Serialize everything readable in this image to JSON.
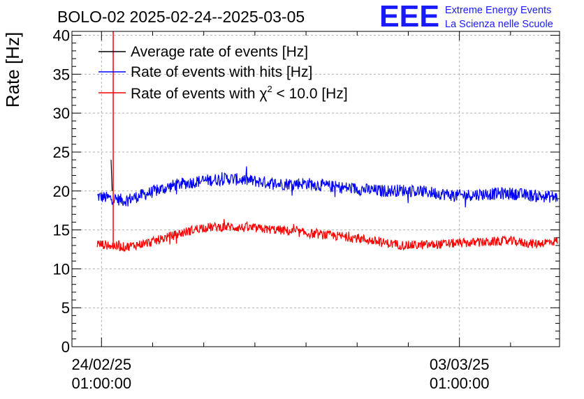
{
  "chart_data": {
    "type": "line",
    "title": "BOLO-02 2025-02-24--2025-03-05",
    "ylabel": "Rate [Hz]",
    "xlabel": "",
    "ylim": [
      0,
      40.5
    ],
    "yticks": [
      0,
      5,
      10,
      15,
      20,
      25,
      30,
      35,
      40
    ],
    "x_axis": {
      "unit": "days",
      "range_start": "2025-02-23 11:08",
      "range_end": "2025-03-05 00:00",
      "ticks": [
        {
          "x": "2025-02-24 01:00:00",
          "date_label": "24/02/25",
          "time_label": "01:00:00"
        },
        {
          "x": "2025-03-03 01:00:00",
          "date_label": "03/03/25",
          "time_label": "01:00:00"
        }
      ]
    },
    "grid": true,
    "legend_placement": "top-left",
    "series": [
      {
        "name": "Average rate of events [Hz]",
        "color": "#000000",
        "description_points": [
          {
            "x": "2025-02-24 05:30",
            "y": 24
          },
          {
            "x": "2025-02-24 06:00",
            "y": 20
          }
        ]
      },
      {
        "name": "Rate of events with hits [Hz]",
        "color": "#0000ff",
        "x_start": "2025-02-23 23:00",
        "x_end": "2025-03-04 23:00",
        "points": [
          {
            "x": "2025-02-23 23:00",
            "y": 19.3
          },
          {
            "x": "2025-02-24 12:00",
            "y": 18.8
          },
          {
            "x": "2025-02-25 00:00",
            "y": 19.8
          },
          {
            "x": "2025-02-25 12:00",
            "y": 20.8
          },
          {
            "x": "2025-02-26 00:00",
            "y": 21.3
          },
          {
            "x": "2025-02-26 12:00",
            "y": 21.6
          },
          {
            "x": "2025-02-27 00:00",
            "y": 21.3
          },
          {
            "x": "2025-02-27 12:00",
            "y": 20.9
          },
          {
            "x": "2025-02-28 00:00",
            "y": 21.0
          },
          {
            "x": "2025-02-28 12:00",
            "y": 20.6
          },
          {
            "x": "2025-03-01 00:00",
            "y": 20.3
          },
          {
            "x": "2025-03-01 12:00",
            "y": 20.0
          },
          {
            "x": "2025-03-02 00:00",
            "y": 20.1
          },
          {
            "x": "2025-03-02 12:00",
            "y": 19.8
          },
          {
            "x": "2025-03-03 00:00",
            "y": 19.4
          },
          {
            "x": "2025-03-03 12:00",
            "y": 19.6
          },
          {
            "x": "2025-03-04 00:00",
            "y": 19.7
          },
          {
            "x": "2025-03-04 12:00",
            "y": 19.4
          },
          {
            "x": "2025-03-04 23:00",
            "y": 19.2
          }
        ],
        "noise_amplitude": 0.8
      },
      {
        "name": "Rate of events with χ² < 10.0 [Hz]",
        "color": "#ff0000",
        "x_start": "2025-02-23 23:00",
        "x_end": "2025-03-04 23:00",
        "points": [
          {
            "x": "2025-02-23 23:00",
            "y": 13.2
          },
          {
            "x": "2025-02-24 12:00",
            "y": 12.8
          },
          {
            "x": "2025-02-25 00:00",
            "y": 13.4
          },
          {
            "x": "2025-02-25 12:00",
            "y": 14.4
          },
          {
            "x": "2025-02-26 00:00",
            "y": 15.3
          },
          {
            "x": "2025-02-26 12:00",
            "y": 15.4
          },
          {
            "x": "2025-02-27 00:00",
            "y": 15.2
          },
          {
            "x": "2025-02-27 12:00",
            "y": 15.0
          },
          {
            "x": "2025-02-28 00:00",
            "y": 14.6
          },
          {
            "x": "2025-02-28 12:00",
            "y": 14.3
          },
          {
            "x": "2025-03-01 00:00",
            "y": 14.0
          },
          {
            "x": "2025-03-01 12:00",
            "y": 13.4
          },
          {
            "x": "2025-03-02 00:00",
            "y": 13.0
          },
          {
            "x": "2025-03-02 12:00",
            "y": 13.1
          },
          {
            "x": "2025-03-03 00:00",
            "y": 13.3
          },
          {
            "x": "2025-03-03 12:00",
            "y": 13.4
          },
          {
            "x": "2025-03-04 00:00",
            "y": 13.6
          },
          {
            "x": "2025-03-04 12:00",
            "y": 13.2
          },
          {
            "x": "2025-03-04 23:00",
            "y": 13.6
          }
        ],
        "noise_amplitude": 0.6,
        "spike": {
          "x": "2025-02-24 06:30",
          "y_from": 12.5,
          "y_to": 40.5
        }
      }
    ],
    "legend": {
      "average": "Average rate of events [Hz]",
      "hits": "Rate of events with hits [Hz]",
      "chi2_prefix": "Rate of events with ",
      "chi2_symbol": "χ",
      "chi2_exponent": "2",
      "chi2_suffix": " < 10.0 [Hz]"
    }
  },
  "logo": {
    "mark": "EEE",
    "line1": "Extreme Energy Events",
    "line2": "La Scienza nelle Scuole",
    "color": "#1a1aff"
  }
}
